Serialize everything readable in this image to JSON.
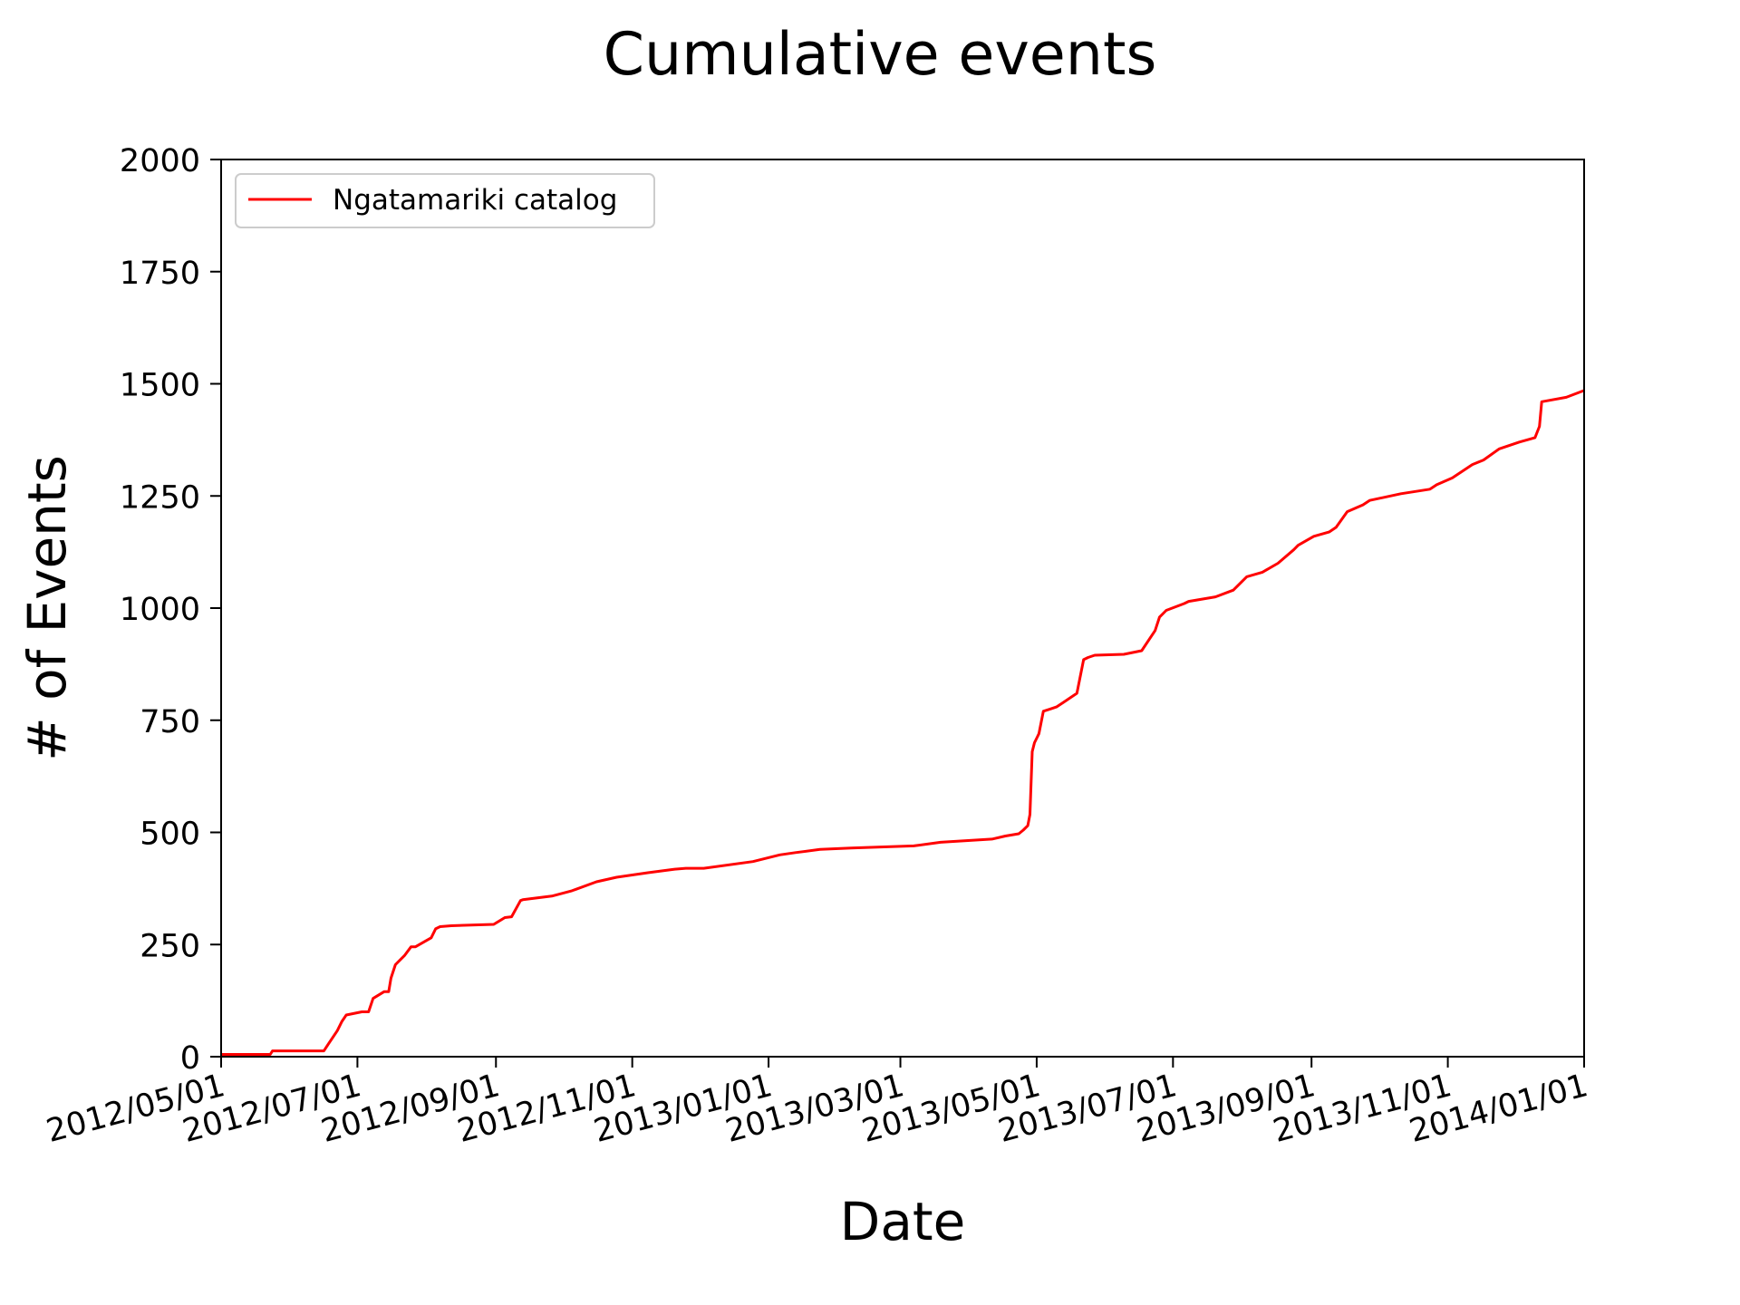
{
  "chart_data": {
    "type": "line",
    "title": "Cumulative events",
    "xlabel": "Date",
    "ylabel": "# of Events",
    "xlim": [
      "2012-05-01",
      "2014-01-01"
    ],
    "ylim": [
      0,
      2000
    ],
    "x_ticks": [
      "2012-05-01",
      "2012-07-01",
      "2012-09-01",
      "2012-11-01",
      "2013-01-01",
      "2013-03-01",
      "2013-05-01",
      "2013-07-01",
      "2013-09-01",
      "2013-11-01",
      "2014-01-01"
    ],
    "x_tick_labels": [
      "2012/05/01",
      "2012/07/01",
      "2012/09/01",
      "2012/11/01",
      "2013/01/01",
      "2013/03/01",
      "2013/05/01",
      "2013/07/01",
      "2013/09/01",
      "2013/11/01",
      "2014/01/01"
    ],
    "y_ticks": [
      0,
      250,
      500,
      750,
      1000,
      1250,
      1500,
      1750,
      2000
    ],
    "y_tick_labels": [
      "0",
      "250",
      "500",
      "750",
      "1000",
      "1250",
      "1500",
      "1750",
      "2000"
    ],
    "grid": false,
    "legend_position": "top-left",
    "series": [
      {
        "name": "Ngatamariki catalog",
        "color": "#ff0000",
        "x": [
          "2012-05-01",
          "2012-05-23",
          "2012-05-24",
          "2012-06-16",
          "2012-06-18",
          "2012-06-22",
          "2012-06-24",
          "2012-06-26",
          "2012-07-03",
          "2012-07-06",
          "2012-07-08",
          "2012-07-13",
          "2012-07-15",
          "2012-07-16",
          "2012-07-18",
          "2012-07-20",
          "2012-07-22",
          "2012-07-25",
          "2012-07-27",
          "2012-08-03",
          "2012-08-05",
          "2012-08-07",
          "2012-08-12",
          "2012-08-31",
          "2012-09-05",
          "2012-09-08",
          "2012-09-12",
          "2012-09-13",
          "2012-09-26",
          "2012-10-05",
          "2012-10-16",
          "2012-10-25",
          "2012-11-08",
          "2012-11-20",
          "2012-11-25",
          "2012-12-03",
          "2012-12-25",
          "2013-01-06",
          "2013-01-13",
          "2013-01-24",
          "2013-02-07",
          "2013-03-07",
          "2013-03-19",
          "2013-04-11",
          "2013-04-17",
          "2013-04-23",
          "2013-04-25",
          "2013-04-27",
          "2013-04-28",
          "2013-04-29",
          "2013-04-30",
          "2013-05-02",
          "2013-05-04",
          "2013-05-07",
          "2013-05-10",
          "2013-05-13",
          "2013-05-19",
          "2013-05-22",
          "2013-05-24",
          "2013-05-27",
          "2013-06-09",
          "2013-06-17",
          "2013-06-23",
          "2013-06-25",
          "2013-06-28",
          "2013-07-06",
          "2013-07-08",
          "2013-07-20",
          "2013-07-28",
          "2013-08-03",
          "2013-08-10",
          "2013-08-17",
          "2013-08-24",
          "2013-08-26",
          "2013-09-02",
          "2013-09-09",
          "2013-09-12",
          "2013-09-17",
          "2013-09-24",
          "2013-09-27",
          "2013-10-11",
          "2013-10-24",
          "2013-10-27",
          "2013-11-03",
          "2013-11-12",
          "2013-11-17",
          "2013-11-24",
          "2013-12-03",
          "2013-12-10",
          "2013-12-12",
          "2013-12-13",
          "2013-12-24",
          "2014-01-01"
        ],
        "y": [
          5,
          5,
          13,
          13,
          28,
          58,
          78,
          93,
          100,
          100,
          130,
          145,
          145,
          175,
          205,
          215,
          225,
          245,
          245,
          265,
          285,
          290,
          292,
          295,
          310,
          312,
          348,
          350,
          358,
          370,
          390,
          400,
          410,
          418,
          420,
          420,
          435,
          450,
          455,
          462,
          465,
          470,
          478,
          485,
          492,
          497,
          505,
          515,
          540,
          680,
          700,
          720,
          770,
          775,
          780,
          790,
          810,
          885,
          890,
          895,
          897,
          905,
          950,
          980,
          995,
          1010,
          1015,
          1025,
          1040,
          1070,
          1080,
          1100,
          1130,
          1140,
          1160,
          1170,
          1180,
          1215,
          1230,
          1240,
          1255,
          1265,
          1275,
          1290,
          1320,
          1330,
          1355,
          1370,
          1380,
          1405,
          1460,
          1470,
          1485
        ]
      }
    ]
  }
}
